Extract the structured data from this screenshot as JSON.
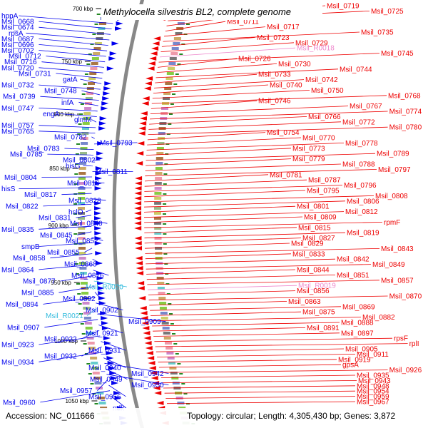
{
  "title": "Methylocella silvestris BL2, complete genome",
  "footer": {
    "accession": "Accession: NC_011666",
    "summary": "Topology: circular; Length: 4,305,430 bp; Genes: 3,872"
  },
  "colors": {
    "forward": "#0000ee",
    "reverse": "#ee0000",
    "rna_forward": "#33bbdd",
    "rna_reverse": "#ee88cc",
    "backbone": "#888888",
    "ticks": "#228822"
  },
  "ticks": [
    "700 kbp",
    "750 kbp",
    "800 kbp",
    "850 kbp",
    "900 kbp",
    "950 kbp",
    "1000 kbp",
    "1050 kbp"
  ],
  "left_labels": [
    "hppA",
    "Msil_0668",
    "Msil_0674",
    "rpsA",
    "Msil_0687",
    "Msil_0696",
    "Msil_0702",
    "Msil_0712",
    "Msil_0716",
    "Msil_0720",
    "Msil_0731",
    "gatA",
    "Msil_0732",
    "Msil_0748",
    "Msil_0739",
    "infA",
    "Msil_0747",
    "engA",
    "glmM",
    "Msil_0757",
    "Msil_0765",
    "Msil_0782",
    "Msil_0793",
    "Msil_0783",
    "Msil_0785",
    "Msil_0802",
    "hisG",
    "Msil_0811",
    "Msil_0804",
    "Msil_0816",
    "hisS",
    "Msil_0817",
    "Msil_0828",
    "Msil_0822",
    "hslO",
    "Msil_0831",
    "Msil_0840",
    "Msil_0835",
    "Msil_0845",
    "Msil_0852",
    "smpB",
    "Msil_0855",
    "Msil_0858",
    "Msil_0868",
    "Msil_0864",
    "Msil_0876",
    "Msil_0877",
    "Msil_R0020",
    "Msil_0885",
    "Msil_0892",
    "Msil_0894",
    "Msil_0902",
    "Msil_R0021",
    "Msil_0909",
    "Msil_0907",
    "Msil_0921",
    "Msil_0922",
    "Msil_0923",
    "Msil_0931",
    "Msil_0932",
    "Msil_0934",
    "Msil_0940",
    "Msil_0942",
    "Msil_0949",
    "Msil_0950",
    "Msil_0957",
    "Msil_0956",
    "Msil_0960",
    "ndk"
  ],
  "right_labels": [
    "Msil_0719",
    "Msil_0725",
    "mdoD",
    "Msil_0711",
    "Msil_0717",
    "Msil_0735",
    "Msil_0723",
    "Msil_0729",
    "Msil_R0018",
    "Msil_0745",
    "Msil_0726",
    "Msil_0730",
    "Msil_0744",
    "Msil_0733",
    "Msil_0742",
    "Msil_0740",
    "Msil_0750",
    "Msil_0768",
    "Msil_0746",
    "Msil_0767",
    "Msil_0774",
    "Msil_0766",
    "Msil_0772",
    "Msil_0780",
    "Msil_0754",
    "Msil_0770",
    "Msil_0778",
    "Msil_0773",
    "Msil_0789",
    "Msil_0779",
    "Msil_0788",
    "Msil_0797",
    "Msil_0781",
    "Msil_0787",
    "Msil_0796",
    "Msil_0795",
    "Msil_0808",
    "Msil_0806",
    "Msil_0801",
    "Msil_0812",
    "Msil_0809",
    "rpmF",
    "Msil_0815",
    "Msil_0819",
    "Msil_0827",
    "Msil_0829",
    "Msil_0843",
    "Msil_0833",
    "Msil_0842",
    "Msil_0849",
    "Msil_0844",
    "Msil_0851",
    "Msil_0857",
    "Msil_R0019",
    "Msil_0856",
    "Msil_0870",
    "Msil_0863",
    "Msil_0869",
    "Msil_0875",
    "Msil_0882",
    "Msil_0888",
    "Msil_0891",
    "Msil_0897",
    "rpsF",
    "rplI",
    "Msil_0905",
    "Msil_0911",
    "Msil_0919",
    "gpsA",
    "Msil_0926",
    "Msil_0935",
    "Msil_0943",
    "Msil_0948",
    "Msil_0954",
    "Msil_0959",
    "Msil_0967"
  ]
}
